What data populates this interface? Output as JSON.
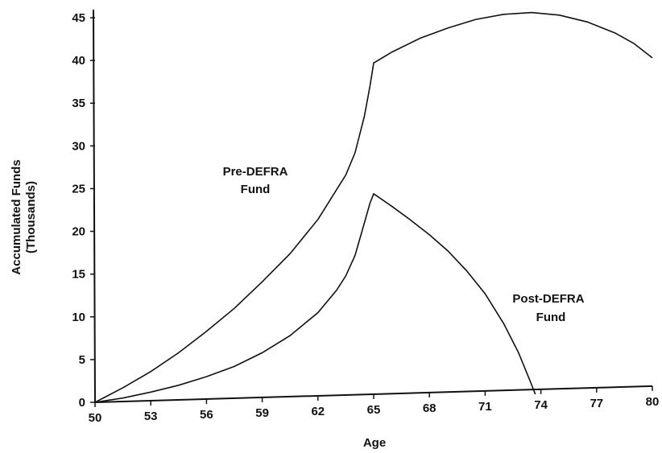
{
  "chart_data": {
    "type": "line",
    "title": "",
    "xlabel": "Age",
    "ylabel": "Accumulated Funds",
    "ylabel_sub": "(Thousands)",
    "xlim": [
      50,
      80
    ],
    "ylim": [
      0,
      45
    ],
    "xticks": [
      50,
      53,
      56,
      59,
      62,
      65,
      68,
      71,
      74,
      77,
      80
    ],
    "yticks": [
      0,
      5,
      10,
      15,
      20,
      25,
      30,
      35,
      40,
      45
    ],
    "grid": false,
    "legend": "none",
    "series": [
      {
        "points": [
          [
            50,
            0
          ],
          [
            51.5,
            1.7
          ],
          [
            53,
            3.6
          ],
          [
            54.5,
            5.8
          ],
          [
            56,
            8.3
          ],
          [
            57.5,
            11.0
          ],
          [
            59,
            14.1
          ],
          [
            60.5,
            17.4
          ],
          [
            62,
            21.4
          ],
          [
            63.5,
            26.6
          ],
          [
            64,
            29.2
          ],
          [
            64.5,
            33.5
          ],
          [
            64.8,
            37.0
          ],
          [
            65,
            39.7
          ],
          [
            66,
            41.0
          ],
          [
            67.5,
            42.6
          ],
          [
            69,
            43.8
          ],
          [
            70.5,
            44.8
          ],
          [
            72,
            45.4
          ],
          [
            73.5,
            45.6
          ],
          [
            75,
            45.3
          ],
          [
            76.5,
            44.5
          ],
          [
            78,
            43.2
          ],
          [
            79,
            42.0
          ],
          [
            80,
            40.3
          ]
        ]
      },
      {
        "points": [
          [
            50,
            0
          ],
          [
            51.5,
            0.5
          ],
          [
            53,
            1.2
          ],
          [
            54.5,
            2.0
          ],
          [
            56,
            3.0
          ],
          [
            57.5,
            4.2
          ],
          [
            59,
            5.8
          ],
          [
            60.5,
            7.8
          ],
          [
            62,
            10.5
          ],
          [
            63,
            13.1
          ],
          [
            63.5,
            14.8
          ],
          [
            64,
            17.2
          ],
          [
            64.5,
            21.0
          ],
          [
            64.8,
            23.3
          ],
          [
            65,
            24.4
          ],
          [
            66,
            22.9
          ],
          [
            67,
            21.3
          ],
          [
            68,
            19.6
          ],
          [
            69,
            17.7
          ],
          [
            70,
            15.4
          ],
          [
            71,
            12.7
          ],
          [
            72,
            9.2
          ],
          [
            72.8,
            5.8
          ],
          [
            73.4,
            2.6
          ],
          [
            73.7,
            0.95
          ]
        ]
      }
    ],
    "baseline": {
      "points": [
        [
          50,
          0
        ],
        [
          80,
          1.9
        ]
      ]
    },
    "annotations": {
      "pre_defra": {
        "line1": "Pre-DEFRA",
        "line2": "Fund"
      },
      "post_defra": {
        "line1": "Post-DEFRA",
        "line2": "Fund"
      }
    }
  }
}
